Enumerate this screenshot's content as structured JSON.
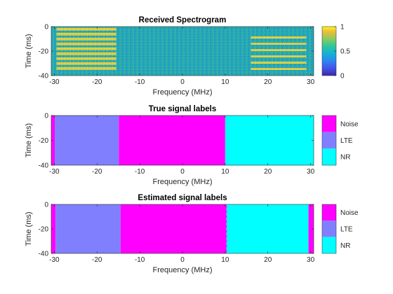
{
  "chart_data": [
    {
      "type": "heatmap",
      "title": "Received Spectrogram",
      "xlabel": "Frequency (MHz)",
      "ylabel": "Time (ms)",
      "xlim": [
        -30.72,
        30.72
      ],
      "ylim": [
        -40,
        0
      ],
      "xticks": [
        "-30",
        "-20",
        "-10",
        "0",
        "10",
        "20",
        "30"
      ],
      "yticks": [
        "0",
        "-20",
        "-40"
      ],
      "colorbar": {
        "ticks": [
          "1",
          "0.5",
          "0"
        ],
        "range": [
          0,
          1
        ],
        "colormap": "parula"
      },
      "signals": [
        {
          "x_range": [
            -29.5,
            -15.5
          ],
          "y_range": [
            -38,
            -1
          ],
          "kind": "LTE-like bursts"
        },
        {
          "x_range": [
            16,
            29
          ],
          "y_range": [
            -38,
            -8
          ],
          "kind": "NR-like bursts"
        }
      ]
    },
    {
      "type": "heatmap",
      "title": "True signal labels",
      "xlabel": "Frequency (MHz)",
      "ylabel": "Time (ms)",
      "xlim": [
        -30.72,
        30.72
      ],
      "ylim": [
        -40,
        0
      ],
      "xticks": [
        "-30",
        "-20",
        "-10",
        "0",
        "10",
        "20",
        "30"
      ],
      "yticks": [
        "0",
        "-20",
        "-40"
      ],
      "legend": {
        "placement": "right",
        "entries": [
          "Noise",
          "LTE",
          "NR"
        ]
      },
      "segments": [
        {
          "x0": -30.72,
          "x1": -29.9,
          "label": "Noise"
        },
        {
          "x0": -29.9,
          "x1": -14.9,
          "label": "LTE"
        },
        {
          "x0": -14.9,
          "x1": 10.0,
          "label": "Noise"
        },
        {
          "x0": 10.0,
          "x1": 30.72,
          "label": "NR"
        }
      ]
    },
    {
      "type": "heatmap",
      "title": "Estimated signal labels",
      "xlabel": "Frequency (MHz)",
      "ylabel": "Time (ms)",
      "xlim": [
        -30.72,
        30.72
      ],
      "ylim": [
        -40,
        0
      ],
      "xticks": [
        "-30",
        "-20",
        "-10",
        "0",
        "10",
        "20",
        "30"
      ],
      "yticks": [
        "0",
        "-20",
        "-40"
      ],
      "legend": {
        "placement": "right",
        "entries": [
          "Noise",
          "LTE",
          "NR"
        ]
      },
      "segments": [
        {
          "x0": -30.72,
          "x1": -29.7,
          "label": "Noise"
        },
        {
          "x0": -29.7,
          "x1": -14.5,
          "label": "LTE"
        },
        {
          "x0": -14.5,
          "x1": 10.3,
          "label": "Noise"
        },
        {
          "x0": 10.3,
          "x1": 29.5,
          "label": "NR"
        },
        {
          "x0": 29.5,
          "x1": 30.72,
          "label": "Noise"
        }
      ]
    }
  ],
  "colors": {
    "Noise": "#ff00ff",
    "LTE": "#8080ff",
    "NR": "#00ffff",
    "spectrogram_background": "#22a3b8",
    "signal_yellow": "#dfd040"
  }
}
